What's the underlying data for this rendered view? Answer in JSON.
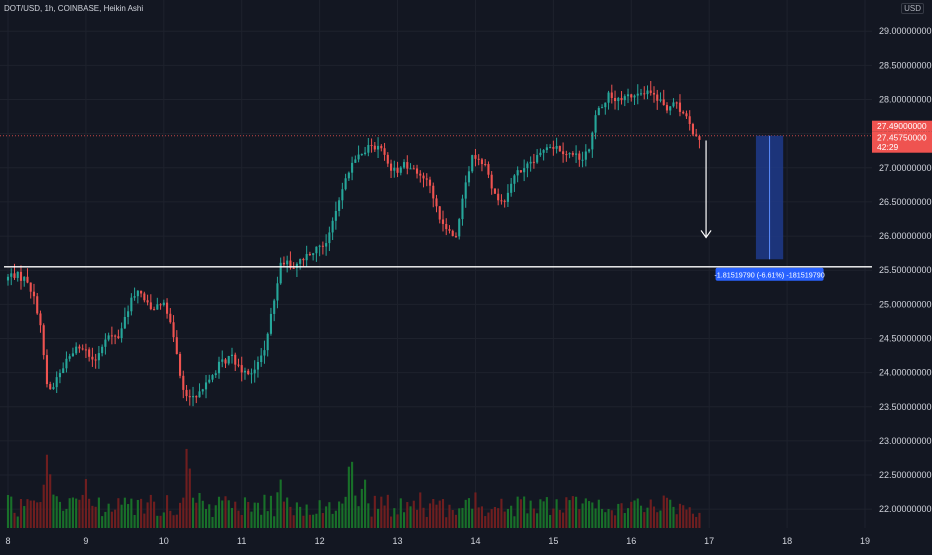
{
  "header": {
    "title": "DOT/USD, 1h, COINBASE, Heikin Ashi",
    "currency": "USD"
  },
  "price_labels": {
    "current_price": "27.49000000",
    "second_price": "27.45750000",
    "countdown": "42:29",
    "measure_text": "-1.81519790 (-6.61%) -181519790"
  },
  "colors": {
    "background": "#131722",
    "up": "#26a69a",
    "down": "#ef5350",
    "volume_up": "#1a7a2a",
    "volume_down": "#7a1f1f",
    "measure_fill": "#1f3a8a",
    "measure_label": "#2962ff",
    "grid": "#1e222d",
    "axis_text": "#d1d4dc"
  },
  "chart_data": {
    "type": "candlestick",
    "symbol": "DOT/USD",
    "interval": "1h",
    "exchange": "COINBASE",
    "style": "Heikin Ashi",
    "ylim": [
      21.9,
      29.15
    ],
    "xlim": [
      8.0,
      19.0
    ],
    "y_ticks": [
      "29.00000000",
      "28.50000000",
      "28.00000000",
      "27.50000000",
      "27.00000000",
      "26.50000000",
      "26.00000000",
      "25.50000000",
      "25.00000000",
      "24.50000000",
      "24.00000000",
      "23.50000000",
      "23.00000000",
      "22.50000000",
      "22.00000000"
    ],
    "x_ticks": [
      "8",
      "9",
      "10",
      "11",
      "12",
      "13",
      "14",
      "15",
      "16",
      "17",
      "18",
      "19"
    ],
    "horizontal_line": 25.55,
    "dotted_line": 27.47,
    "arrow": {
      "from": [
        16.96,
        27.4
      ],
      "to": [
        16.96,
        25.98
      ]
    },
    "measure_box": {
      "x0": 17.6,
      "x1": 17.95,
      "y_top": 27.47,
      "y_bottom": 25.66
    },
    "grid": true,
    "anchors": [
      [
        8.0,
        25.35
      ],
      [
        8.1,
        25.45
      ],
      [
        8.3,
        25.35
      ],
      [
        8.45,
        24.8
      ],
      [
        8.55,
        23.7
      ],
      [
        8.65,
        23.85
      ],
      [
        8.75,
        24.1
      ],
      [
        8.9,
        24.35
      ],
      [
        9.0,
        24.4
      ],
      [
        9.15,
        24.15
      ],
      [
        9.3,
        24.55
      ],
      [
        9.45,
        24.5
      ],
      [
        9.55,
        24.85
      ],
      [
        9.7,
        25.25
      ],
      [
        9.8,
        25.05
      ],
      [
        9.9,
        24.95
      ],
      [
        10.0,
        25.05
      ],
      [
        10.1,
        24.85
      ],
      [
        10.2,
        24.3
      ],
      [
        10.3,
        23.65
      ],
      [
        10.45,
        23.6
      ],
      [
        10.6,
        23.85
      ],
      [
        10.75,
        24.1
      ],
      [
        10.9,
        24.25
      ],
      [
        11.05,
        24.05
      ],
      [
        11.2,
        24.0
      ],
      [
        11.35,
        24.4
      ],
      [
        11.45,
        25.0
      ],
      [
        11.55,
        25.65
      ],
      [
        11.7,
        25.55
      ],
      [
        11.85,
        25.7
      ],
      [
        12.0,
        25.85
      ],
      [
        12.15,
        25.95
      ],
      [
        12.3,
        26.6
      ],
      [
        12.45,
        27.05
      ],
      [
        12.6,
        27.25
      ],
      [
        12.8,
        27.35
      ],
      [
        12.9,
        27.1
      ],
      [
        13.0,
        26.95
      ],
      [
        13.15,
        27.05
      ],
      [
        13.3,
        26.95
      ],
      [
        13.45,
        26.75
      ],
      [
        13.55,
        26.35
      ],
      [
        13.7,
        26.05
      ],
      [
        13.8,
        26.0
      ],
      [
        13.9,
        26.75
      ],
      [
        14.0,
        27.15
      ],
      [
        14.15,
        27.1
      ],
      [
        14.25,
        26.7
      ],
      [
        14.4,
        26.45
      ],
      [
        14.55,
        26.9
      ],
      [
        14.7,
        27.0
      ],
      [
        14.85,
        27.15
      ],
      [
        14.95,
        27.35
      ],
      [
        15.1,
        27.3
      ],
      [
        15.25,
        27.2
      ],
      [
        15.4,
        27.15
      ],
      [
        15.5,
        27.3
      ],
      [
        15.6,
        27.85
      ],
      [
        15.75,
        28.05
      ],
      [
        15.9,
        27.95
      ],
      [
        16.0,
        28.05
      ],
      [
        16.2,
        28.1
      ],
      [
        16.35,
        28.05
      ],
      [
        16.5,
        27.85
      ],
      [
        16.6,
        27.95
      ],
      [
        16.75,
        27.7
      ],
      [
        16.85,
        27.5
      ],
      [
        16.9,
        27.46
      ]
    ],
    "volume_peaks": [
      [
        8.5,
        1.0
      ],
      [
        8.55,
        0.85
      ],
      [
        9.0,
        0.55
      ],
      [
        9.5,
        0.4
      ],
      [
        10.3,
        0.95
      ],
      [
        10.45,
        0.7
      ],
      [
        11.5,
        0.75
      ],
      [
        12.4,
        0.9
      ],
      [
        12.55,
        0.75
      ],
      [
        13.3,
        0.5
      ],
      [
        13.5,
        0.45
      ],
      [
        14.0,
        0.55
      ],
      [
        14.6,
        0.4
      ],
      [
        15.5,
        0.45
      ],
      [
        16.3,
        0.35
      ],
      [
        16.5,
        0.3
      ]
    ]
  }
}
